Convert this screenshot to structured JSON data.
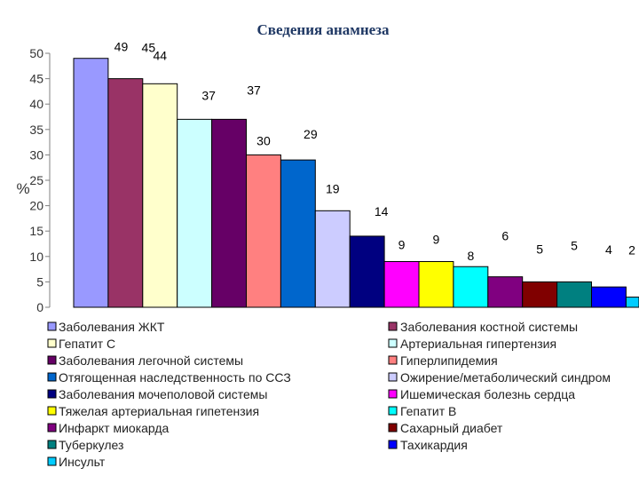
{
  "chart_data": {
    "type": "bar",
    "title": "Сведения анамнеза",
    "ylabel": "%",
    "ylim": [
      0,
      50
    ],
    "yticks": [
      0,
      5,
      10,
      15,
      20,
      25,
      30,
      35,
      40,
      45,
      50
    ],
    "grid": false,
    "legend_position": "bottom",
    "series": [
      {
        "name": "Заболевания ЖКТ",
        "value": 49,
        "color": "#9999ff"
      },
      {
        "name": "Заболевания костной системы",
        "value": 45,
        "color": "#993366"
      },
      {
        "name": "Гепатит С",
        "value": 44,
        "color": "#ffffcc"
      },
      {
        "name": "Артериальная гипертензия",
        "value": 37,
        "color": "#ccffff"
      },
      {
        "name": "Заболевания легочной системы",
        "value": 37,
        "color": "#660066"
      },
      {
        "name": "Гиперлипидемия",
        "value": 30,
        "color": "#ff8080"
      },
      {
        "name": "Отягощенная наследственность по ССЗ",
        "value": 29,
        "color": "#0066cc"
      },
      {
        "name": "Ожирение/метаболический синдром",
        "value": 19,
        "color": "#ccccff"
      },
      {
        "name": "Заболевания мочеполовой системы",
        "value": 14,
        "color": "#000080"
      },
      {
        "name": "Ишемическая болезнь сердца",
        "value": 9,
        "color": "#ff00ff"
      },
      {
        "name": "Тяжелая артериальная гипетензия",
        "value": 9,
        "color": "#ffff00"
      },
      {
        "name": "Гепатит В",
        "value": 8,
        "color": "#00ffff"
      },
      {
        "name": "Инфаркт миокарда",
        "value": 6,
        "color": "#800080"
      },
      {
        "name": "Сахарный диабет",
        "value": 5,
        "color": "#800000"
      },
      {
        "name": "Туберкулез",
        "value": 5,
        "color": "#008080"
      },
      {
        "name": "Тахикардия",
        "value": 4,
        "color": "#0000ff"
      },
      {
        "name": "Инсульт",
        "value": 2,
        "color": "#00ccff"
      }
    ],
    "legend_left": [
      "Заболевания ЖКТ",
      "Гепатит С",
      "Заболевания легочной системы",
      "Отягощенная наследственность по ССЗ",
      "Заболевания мочеполовой системы",
      "Тяжелая артериальная гипетензия",
      "Инфаркт миокарда",
      "Туберкулез",
      "Инсульт"
    ],
    "legend_right": [
      "Заболевания костной системы",
      "Артериальная гипертензия",
      "Гиперлипидемия",
      "Ожирение/метаболический синдром",
      "Ишемическая болезнь сердца",
      "Гепатит В",
      "Сахарный диабет",
      "Тахикардия"
    ]
  }
}
